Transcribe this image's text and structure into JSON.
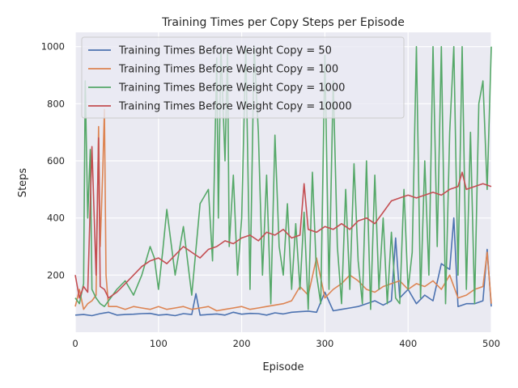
{
  "chart_data": {
    "type": "line",
    "title": "Training Times per Copy Steps per Episode",
    "xlabel": "Episode",
    "ylabel": "Steps",
    "xlim": [
      0,
      500
    ],
    "ylim": [
      0,
      1050
    ],
    "xticks": [
      0,
      100,
      200,
      300,
      400,
      500
    ],
    "yticks": [
      200,
      400,
      600,
      800,
      1000
    ],
    "grid": true,
    "legend_position": "top-left",
    "series": [
      {
        "name": "Training Times Before Weight Copy = 50",
        "color": "#4c72b0",
        "x": [
          0,
          10,
          20,
          30,
          40,
          50,
          60,
          70,
          80,
          90,
          100,
          110,
          120,
          130,
          140,
          145,
          150,
          160,
          170,
          180,
          190,
          200,
          210,
          220,
          230,
          240,
          250,
          260,
          270,
          280,
          290,
          300,
          310,
          320,
          330,
          340,
          350,
          360,
          370,
          380,
          385,
          390,
          400,
          410,
          420,
          430,
          440,
          450,
          455,
          460,
          470,
          480,
          490,
          495,
          500
        ],
        "values": [
          60,
          62,
          58,
          65,
          70,
          60,
          62,
          63,
          65,
          66,
          60,
          62,
          58,
          65,
          62,
          135,
          60,
          62,
          64,
          60,
          70,
          63,
          66,
          65,
          60,
          68,
          64,
          70,
          72,
          74,
          70,
          140,
          75,
          80,
          85,
          90,
          100,
          110,
          95,
          110,
          330,
          120,
          150,
          100,
          130,
          110,
          240,
          220,
          400,
          90,
          100,
          100,
          110,
          290,
          90
        ]
      },
      {
        "name": "Training Times Before Weight Copy = 100",
        "color": "#dd8452",
        "x": [
          0,
          5,
          10,
          15,
          20,
          25,
          28,
          30,
          33,
          35,
          37,
          40,
          50,
          60,
          70,
          80,
          90,
          100,
          110,
          120,
          130,
          140,
          150,
          160,
          170,
          180,
          190,
          200,
          210,
          220,
          230,
          240,
          250,
          260,
          270,
          280,
          290,
          300,
          310,
          320,
          330,
          340,
          350,
          360,
          370,
          380,
          390,
          400,
          410,
          420,
          430,
          440,
          450,
          460,
          470,
          480,
          490,
          495,
          500
        ],
        "values": [
          90,
          150,
          80,
          100,
          110,
          130,
          720,
          300,
          560,
          780,
          200,
          90,
          90,
          80,
          90,
          85,
          80,
          90,
          80,
          85,
          90,
          80,
          85,
          90,
          75,
          80,
          85,
          90,
          80,
          85,
          90,
          95,
          100,
          110,
          160,
          130,
          260,
          120,
          150,
          170,
          200,
          180,
          150,
          140,
          160,
          170,
          180,
          150,
          170,
          160,
          180,
          150,
          200,
          120,
          130,
          150,
          160,
          280,
          100
        ]
      },
      {
        "name": "Training Times Before Weight Copy = 1000",
        "color": "#55a868",
        "x": [
          0,
          5,
          10,
          12,
          15,
          18,
          20,
          25,
          30,
          35,
          40,
          50,
          60,
          70,
          80,
          90,
          95,
          100,
          105,
          110,
          120,
          130,
          140,
          145,
          150,
          160,
          165,
          170,
          172,
          175,
          180,
          183,
          185,
          190,
          195,
          200,
          205,
          210,
          215,
          220,
          225,
          230,
          235,
          240,
          245,
          250,
          255,
          260,
          265,
          270,
          275,
          280,
          285,
          290,
          295,
          300,
          305,
          310,
          315,
          320,
          325,
          330,
          335,
          340,
          345,
          350,
          355,
          360,
          365,
          370,
          375,
          380,
          385,
          390,
          395,
          400,
          405,
          410,
          415,
          420,
          425,
          430,
          435,
          440,
          445,
          450,
          455,
          460,
          465,
          470,
          475,
          480,
          485,
          490,
          495,
          500
        ],
        "values": [
          120,
          100,
          170,
          880,
          400,
          640,
          150,
          120,
          100,
          90,
          110,
          150,
          180,
          130,
          200,
          300,
          260,
          150,
          280,
          430,
          200,
          370,
          130,
          290,
          450,
          500,
          250,
          960,
          400,
          1000,
          600,
          980,
          300,
          550,
          200,
          400,
          1000,
          150,
          1000,
          700,
          200,
          550,
          100,
          690,
          300,
          200,
          450,
          150,
          380,
          150,
          420,
          80,
          560,
          200,
          100,
          970,
          150,
          880,
          300,
          100,
          500,
          150,
          590,
          250,
          100,
          600,
          80,
          550,
          150,
          400,
          100,
          350,
          120,
          100,
          500,
          150,
          280,
          1000,
          120,
          600,
          200,
          1000,
          300,
          1000,
          100,
          700,
          1000,
          200,
          1000,
          150,
          700,
          100,
          800,
          880,
          500,
          1000
        ]
      },
      {
        "name": "Training Times Before Weight Copy = 10000",
        "color": "#c44e52",
        "x": [
          0,
          5,
          10,
          15,
          20,
          25,
          28,
          30,
          35,
          40,
          50,
          60,
          70,
          80,
          90,
          100,
          110,
          120,
          130,
          140,
          150,
          160,
          170,
          180,
          190,
          200,
          210,
          220,
          230,
          240,
          250,
          260,
          270,
          275,
          280,
          290,
          300,
          310,
          320,
          330,
          340,
          350,
          360,
          370,
          380,
          390,
          400,
          410,
          420,
          430,
          440,
          450,
          460,
          465,
          470,
          480,
          490,
          500
        ],
        "values": [
          200,
          120,
          160,
          140,
          650,
          200,
          680,
          160,
          150,
          120,
          140,
          170,
          200,
          230,
          250,
          260,
          240,
          270,
          300,
          280,
          260,
          290,
          300,
          320,
          310,
          330,
          340,
          320,
          350,
          340,
          360,
          330,
          340,
          520,
          360,
          350,
          370,
          360,
          380,
          360,
          390,
          400,
          380,
          420,
          460,
          470,
          480,
          470,
          480,
          490,
          480,
          500,
          510,
          560,
          500,
          510,
          520,
          510
        ]
      }
    ]
  }
}
